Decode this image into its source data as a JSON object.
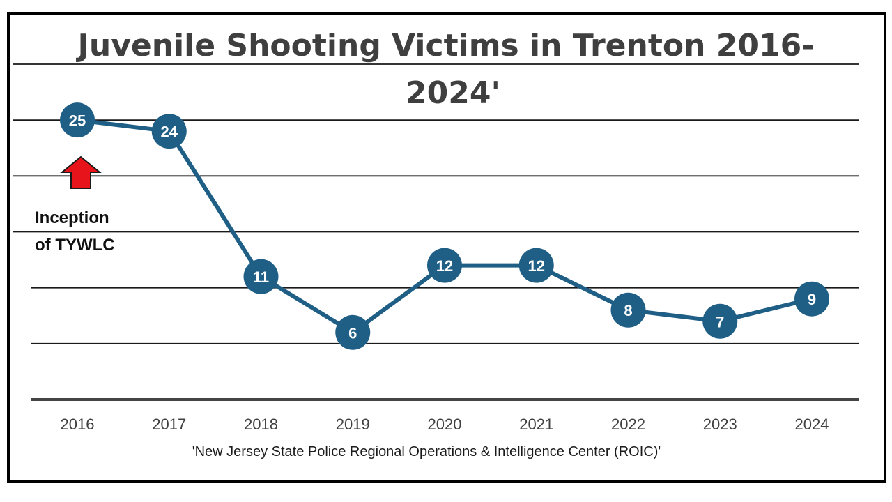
{
  "chart_data": {
    "type": "line",
    "title_line1": "Juvenile Shooting Victims in Trenton 2016-",
    "title_line2": "2024'",
    "categories": [
      "2016",
      "2017",
      "2018",
      "2019",
      "2020",
      "2021",
      "2022",
      "2023",
      "2024"
    ],
    "series": [
      {
        "name": "Juvenile Shooting Victims",
        "values": [
          25,
          24,
          11,
          6,
          12,
          12,
          8,
          7,
          9
        ]
      }
    ],
    "ylim": [
      0,
      30
    ],
    "y_gridlines": [
      5,
      10,
      15,
      20,
      25,
      30
    ],
    "grid": true,
    "xlabel": "'New Jersey State Police Regional Operations & Intelligence Center (ROIC)'",
    "ylabel": "",
    "annotation": {
      "line1": "Inception",
      "line2": "of TYWLC",
      "target_category": "2016",
      "arrow_color": "#e8141b"
    },
    "colors": {
      "series": "#1f5f86",
      "marker_label": "#ffffff",
      "gridline": "#1a1a1a",
      "title": "#3f3f3f"
    }
  }
}
